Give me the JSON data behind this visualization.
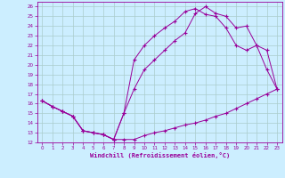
{
  "xlabel": "Windchill (Refroidissement éolien,°C)",
  "bg_color": "#cceeff",
  "line_color": "#990099",
  "grid_color": "#aacccc",
  "xlim": [
    -0.5,
    23.5
  ],
  "ylim": [
    12,
    26.5
  ],
  "xticks": [
    0,
    1,
    2,
    3,
    4,
    5,
    6,
    7,
    8,
    9,
    10,
    11,
    12,
    13,
    14,
    15,
    16,
    17,
    18,
    19,
    20,
    21,
    22,
    23
  ],
  "yticks": [
    12,
    13,
    14,
    15,
    16,
    17,
    18,
    19,
    20,
    21,
    22,
    23,
    24,
    25,
    26
  ],
  "line1_x": [
    0,
    1,
    2,
    3,
    4,
    5,
    6,
    7,
    8,
    9,
    10,
    11,
    12,
    13,
    14,
    15,
    16,
    17,
    18,
    19,
    20,
    21,
    22,
    23
  ],
  "line1_y": [
    16.3,
    15.7,
    15.2,
    14.7,
    13.2,
    13.0,
    12.8,
    12.3,
    12.3,
    12.3,
    12.7,
    13.0,
    13.2,
    13.5,
    13.8,
    14.0,
    14.3,
    14.7,
    15.0,
    15.5,
    16.0,
    16.5,
    17.0,
    17.5
  ],
  "line2_x": [
    0,
    1,
    2,
    3,
    4,
    5,
    6,
    7,
    8,
    9,
    10,
    11,
    12,
    13,
    14,
    15,
    16,
    17,
    18,
    19,
    20,
    21,
    22,
    23
  ],
  "line2_y": [
    16.3,
    15.7,
    15.2,
    14.7,
    13.2,
    13.0,
    12.8,
    12.3,
    15.0,
    17.5,
    19.5,
    20.5,
    21.5,
    22.5,
    23.3,
    25.3,
    26.0,
    25.3,
    25.0,
    23.8,
    24.0,
    22.0,
    21.5,
    17.5
  ],
  "line3_x": [
    0,
    1,
    2,
    3,
    4,
    5,
    6,
    7,
    8,
    9,
    10,
    11,
    12,
    13,
    14,
    15,
    16,
    17,
    18,
    19,
    20,
    21,
    22,
    23
  ],
  "line3_y": [
    16.3,
    15.7,
    15.2,
    14.7,
    13.2,
    13.0,
    12.8,
    12.3,
    15.0,
    20.5,
    22.0,
    23.0,
    23.8,
    24.5,
    25.5,
    25.8,
    25.2,
    25.0,
    23.8,
    22.0,
    21.5,
    22.0,
    19.5,
    17.5
  ]
}
